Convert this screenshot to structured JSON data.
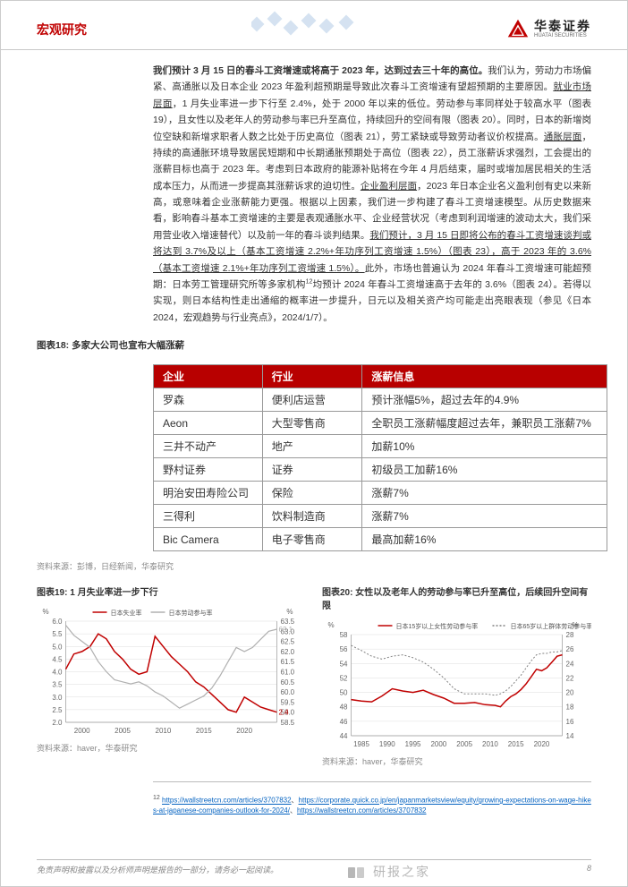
{
  "header": {
    "category": "宏观研究",
    "logo_cn": "华泰证券",
    "logo_en": "HUATAI SECURITIES",
    "logo_triangle_fill": "#c00000"
  },
  "paragraph": {
    "p1_bold": "我们预计 3 月 15 日的春斗工资增速或将高于 2023 年，达到过去三十年的高位。",
    "p1": "我们认为，劳动力市场偏紧、高通胀以及日本企业 2023 年盈利超预期是导致此次春斗工资增速有望超预期的主要原因。",
    "p2_u": "就业市场层面",
    "p2": "，1 月失业率进一步下行至 2.4%，处于 2000 年以来的低位。劳动参与率同样处于较高水平（图表 19），且女性以及老年人的劳动参与率已升至高位，持续回升的空间有限（图表 20）。同时，日本的新增岗位空缺和新增求职者人数之比处于历史高位（图表 21），劳工紧缺或导致劳动者议价权提高。",
    "p3_u": "通胀层面",
    "p3": "，持续的高通胀环境导致居民短期和中长期通胀预期处于高位（图表 22），员工涨薪诉求强烈，工会提出的涨薪目标也高于 2023 年。考虑到日本政府的能源补贴将在今年 4 月后结束，届时或增加居民相关的生活成本压力，从而进一步提高其涨薪诉求的迫切性。",
    "p4_u": "企业盈利层面",
    "p4": "，2023 年日本企业名义盈利创有史以来新高，或意味着企业涨薪能力更强。根据以上因素，我们进一步构建了春斗工资增速模型。从历史数据来看，影响春斗基本工资增速的主要是表观通胀水平、企业经营状况（考虑到利润增速的波动太大，我们采用营业收入增速替代）以及前一年的春斗谈判结果。",
    "p5_u": "我们预计，3 月 15 日即将公布的春斗工资增速谈判或将达到 3.7%及以上（基本工资增速 2.2%+年功序列工资增速 1.5%）（图表 23），高于 2023 年的 3.6%（基本工资增速 2.1%+年功序列工资增速 1.5%）。",
    "p5": "此外，市场也普遍认为 2024 年春斗工资增速可能超预期：日本劳工管理研究所等多家机构",
    "p5_sup": "12",
    "p5b": "均预计 2024 年春斗工资增速高于去年的 3.6%（图表 24）。若得以实现，则日本结构性走出通缩的概率进一步提升，日元以及相关资产均可能走出亮眼表现（参见《日本 2024，宏观趋势与行业亮点》，2024/1/7）。"
  },
  "table": {
    "title": "图表18:  多家大公司也宣布大幅涨薪",
    "headers": [
      "企业",
      "行业",
      "涨薪信息"
    ],
    "rows": [
      [
        "罗森",
        "便利店运营",
        "预计涨幅5%，超过去年的4.9%"
      ],
      [
        "Aeon",
        "大型零售商",
        "全职员工涨薪幅度超过去年，兼职员工涨薪7%"
      ],
      [
        "三井不动产",
        "地产",
        "加薪10%"
      ],
      [
        "野村证券",
        "证券",
        "初级员工加薪16%"
      ],
      [
        "明治安田寿险公司",
        "保险",
        "涨薪7%"
      ],
      [
        "三得利",
        "饮料制造商",
        "涨薪7%"
      ],
      [
        "Bic Camera",
        "电子零售商",
        "最高加薪16%"
      ]
    ],
    "source": "资料来源：彭博，日经新闻，华泰研究",
    "header_bg": "#b80000",
    "col_widths": [
      "24%",
      "22%",
      "54%"
    ]
  },
  "chart19": {
    "title": "图表19:  1 月失业率进一步下行",
    "type": "line",
    "source": "资料来源：haver，华泰研究",
    "ylabel": "%",
    "ylim": [
      2.0,
      6.0
    ],
    "ytick_step": 0.5,
    "xlim": [
      1998,
      2024
    ],
    "xticks": [
      2000,
      2005,
      2010,
      2015,
      2020
    ],
    "background": "#ffffff",
    "grid_color": "#dddddd",
    "series": [
      {
        "name": "日本失业率",
        "color": "#c00000",
        "width": 1.5,
        "axis": "left",
        "end_label": "2.4",
        "points": [
          [
            1998,
            4.1
          ],
          [
            1999,
            4.7
          ],
          [
            2000,
            4.8
          ],
          [
            2001,
            5.0
          ],
          [
            2002,
            5.5
          ],
          [
            2003,
            5.3
          ],
          [
            2004,
            4.8
          ],
          [
            2005,
            4.5
          ],
          [
            2006,
            4.1
          ],
          [
            2007,
            3.9
          ],
          [
            2008,
            4.0
          ],
          [
            2009,
            5.4
          ],
          [
            2010,
            5.0
          ],
          [
            2011,
            4.6
          ],
          [
            2012,
            4.3
          ],
          [
            2013,
            4.0
          ],
          [
            2014,
            3.6
          ],
          [
            2015,
            3.4
          ],
          [
            2016,
            3.1
          ],
          [
            2017,
            2.8
          ],
          [
            2018,
            2.5
          ],
          [
            2019,
            2.4
          ],
          [
            2020,
            3.0
          ],
          [
            2021,
            2.8
          ],
          [
            2022,
            2.6
          ],
          [
            2023,
            2.5
          ],
          [
            2024,
            2.4
          ]
        ]
      },
      {
        "name": "日本劳动参与率",
        "color": "#b0b0b0",
        "width": 1.2,
        "axis": "right",
        "end_label": "63.1",
        "ylim_right": [
          58.5,
          63.5
        ],
        "ytick_step_right": 0.5,
        "points": [
          [
            1998,
            63.3
          ],
          [
            1999,
            62.8
          ],
          [
            2000,
            62.5
          ],
          [
            2001,
            62.2
          ],
          [
            2002,
            61.5
          ],
          [
            2003,
            61.0
          ],
          [
            2004,
            60.6
          ],
          [
            2005,
            60.5
          ],
          [
            2006,
            60.4
          ],
          [
            2007,
            60.5
          ],
          [
            2008,
            60.3
          ],
          [
            2009,
            60.0
          ],
          [
            2010,
            59.8
          ],
          [
            2011,
            59.5
          ],
          [
            2012,
            59.2
          ],
          [
            2013,
            59.4
          ],
          [
            2014,
            59.6
          ],
          [
            2015,
            59.8
          ],
          [
            2016,
            60.2
          ],
          [
            2017,
            60.8
          ],
          [
            2018,
            61.5
          ],
          [
            2019,
            62.2
          ],
          [
            2020,
            62.0
          ],
          [
            2021,
            62.2
          ],
          [
            2022,
            62.6
          ],
          [
            2023,
            63.0
          ],
          [
            2024,
            63.1
          ]
        ]
      }
    ],
    "legend_pos": "top-center",
    "label_fontsize": 8
  },
  "chart20": {
    "title": "图表20:  女性以及老年人的劳动参与率已升至高位，后续回升空间有限",
    "type": "line",
    "source": "资料来源：haver，华泰研究",
    "ylabel": "%",
    "ylim_left": [
      44,
      58
    ],
    "ytick_step_left": 2,
    "ylim_right": [
      14,
      28
    ],
    "ytick_step_right": 2,
    "xlim": [
      1983,
      2024
    ],
    "xticks": [
      1985,
      1990,
      1995,
      2000,
      2005,
      2010,
      2015,
      2020
    ],
    "background": "#ffffff",
    "grid_color": "#dddddd",
    "series": [
      {
        "name": "日本15岁以上女性劳动参与率",
        "color": "#c00000",
        "width": 1.5,
        "axis": "left",
        "points": [
          [
            1983,
            49.0
          ],
          [
            1985,
            48.8
          ],
          [
            1987,
            48.7
          ],
          [
            1989,
            49.5
          ],
          [
            1991,
            50.5
          ],
          [
            1993,
            50.2
          ],
          [
            1995,
            50.0
          ],
          [
            1997,
            50.3
          ],
          [
            1999,
            49.7
          ],
          [
            2001,
            49.2
          ],
          [
            2003,
            48.5
          ],
          [
            2005,
            48.5
          ],
          [
            2007,
            48.6
          ],
          [
            2009,
            48.3
          ],
          [
            2011,
            48.2
          ],
          [
            2012,
            48.0
          ],
          [
            2013,
            48.8
          ],
          [
            2014,
            49.4
          ],
          [
            2015,
            49.8
          ],
          [
            2016,
            50.4
          ],
          [
            2017,
            51.2
          ],
          [
            2018,
            52.2
          ],
          [
            2019,
            53.2
          ],
          [
            2020,
            53.0
          ],
          [
            2021,
            53.4
          ],
          [
            2022,
            54.2
          ],
          [
            2023,
            55.0
          ],
          [
            2024,
            55.2
          ]
        ]
      },
      {
        "name": "日本65岁以上群体劳动参与率",
        "color": "#808080",
        "width": 1.0,
        "axis": "right",
        "dash": "2,2",
        "points": [
          [
            1983,
            26.5
          ],
          [
            1985,
            25.8
          ],
          [
            1987,
            25.0
          ],
          [
            1989,
            24.6
          ],
          [
            1991,
            25.0
          ],
          [
            1993,
            25.2
          ],
          [
            1995,
            24.8
          ],
          [
            1997,
            24.2
          ],
          [
            1999,
            23.2
          ],
          [
            2001,
            22.0
          ],
          [
            2003,
            20.5
          ],
          [
            2005,
            19.8
          ],
          [
            2007,
            19.8
          ],
          [
            2009,
            19.8
          ],
          [
            2011,
            19.6
          ],
          [
            2012,
            19.8
          ],
          [
            2013,
            20.2
          ],
          [
            2014,
            20.8
          ],
          [
            2015,
            21.6
          ],
          [
            2016,
            22.4
          ],
          [
            2017,
            23.4
          ],
          [
            2018,
            24.4
          ],
          [
            2019,
            25.2
          ],
          [
            2020,
            25.4
          ],
          [
            2021,
            25.4
          ],
          [
            2022,
            25.6
          ],
          [
            2023,
            25.6
          ],
          [
            2024,
            25.8
          ]
        ]
      }
    ],
    "legend_pos": "top-center",
    "label_fontsize": 8
  },
  "footnotes": {
    "num": "12",
    "links": [
      "https://wallstreetcn.com/articles/3707832",
      "https://corporate.quick.co.jp/en/japanmarketsview/equity/growing-expectations-on-wage-hikes-at-japanese-companies-outlook-for-2024/",
      "https://wallstreetcn.com/articles/3707832"
    ]
  },
  "footer": {
    "disclaimer": "免责声明和披露以及分析师声明是报告的一部分，请务必一起阅读。",
    "page": "8",
    "watermark": "研报之家"
  },
  "ybook_logo": {
    "fill": "#888888"
  }
}
